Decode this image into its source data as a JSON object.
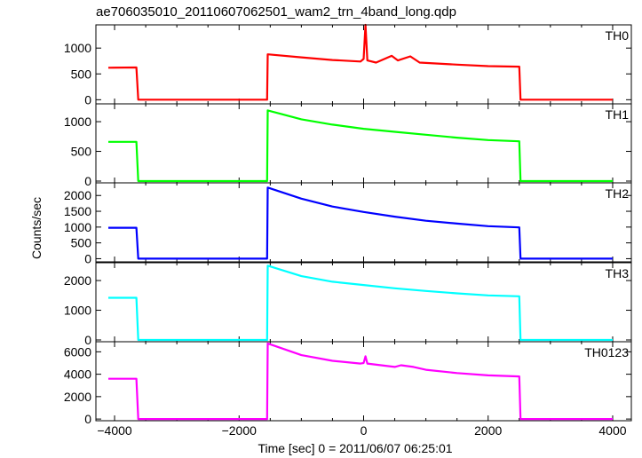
{
  "chart_data": {
    "type": "line",
    "title": "ae706035010_20110607062501_wam2_trn_4band_long.qdp",
    "xlabel": "Time [sec] 0 = 2011/06/07 06:25:01",
    "ylabel": "Counts/sec",
    "xlim": [
      -4300,
      4300
    ],
    "xticks": [
      -4000,
      -2000,
      0,
      2000,
      4000
    ],
    "xtick_labels": [
      "−4000",
      "−2000",
      "0",
      "2000",
      "4000"
    ],
    "panels": [
      {
        "name": "TH0",
        "color": "#ff0000",
        "ylim": [
          -80,
          1450
        ],
        "yticks": [
          0,
          500,
          1000
        ],
        "points": [
          [
            -4100,
            620
          ],
          [
            -3650,
            625
          ],
          [
            -3620,
            0
          ],
          [
            -1550,
            0
          ],
          [
            -1540,
            880
          ],
          [
            -1000,
            820
          ],
          [
            -500,
            770
          ],
          [
            -50,
            740
          ],
          [
            0,
            790
          ],
          [
            30,
            1450
          ],
          [
            60,
            760
          ],
          [
            200,
            720
          ],
          [
            450,
            850
          ],
          [
            550,
            760
          ],
          [
            750,
            840
          ],
          [
            900,
            720
          ],
          [
            1500,
            680
          ],
          [
            2000,
            650
          ],
          [
            2500,
            640
          ],
          [
            2520,
            0
          ],
          [
            4000,
            0
          ]
        ]
      },
      {
        "name": "TH1",
        "color": "#00ff00",
        "ylim": [
          -30,
          1300
        ],
        "yticks": [
          0,
          500,
          1000
        ],
        "points": [
          [
            -4100,
            660
          ],
          [
            -3650,
            660
          ],
          [
            -3620,
            0
          ],
          [
            -1550,
            0
          ],
          [
            -1540,
            1190
          ],
          [
            -1000,
            1040
          ],
          [
            -500,
            950
          ],
          [
            0,
            880
          ],
          [
            500,
            830
          ],
          [
            1000,
            780
          ],
          [
            1500,
            730
          ],
          [
            2000,
            690
          ],
          [
            2500,
            670
          ],
          [
            2520,
            0
          ],
          [
            4000,
            0
          ]
        ]
      },
      {
        "name": "TH2",
        "color": "#0000ff",
        "ylim": [
          -100,
          2400
        ],
        "yticks": [
          0,
          500,
          1000,
          1500,
          2000
        ],
        "points": [
          [
            -4100,
            980
          ],
          [
            -3650,
            980
          ],
          [
            -3620,
            0
          ],
          [
            -1550,
            0
          ],
          [
            -1540,
            2250
          ],
          [
            -1000,
            1900
          ],
          [
            -500,
            1650
          ],
          [
            0,
            1480
          ],
          [
            500,
            1330
          ],
          [
            1000,
            1200
          ],
          [
            1500,
            1110
          ],
          [
            2000,
            1030
          ],
          [
            2500,
            990
          ],
          [
            2520,
            0
          ],
          [
            4000,
            0
          ]
        ]
      },
      {
        "name": "TH3",
        "color": "#00ffff",
        "ylim": [
          -60,
          2600
        ],
        "yticks": [
          0,
          1000,
          2000
        ],
        "points": [
          [
            -4100,
            1420
          ],
          [
            -3650,
            1420
          ],
          [
            -3620,
            0
          ],
          [
            -1550,
            0
          ],
          [
            -1540,
            2500
          ],
          [
            -1000,
            2150
          ],
          [
            -500,
            1960
          ],
          [
            0,
            1850
          ],
          [
            500,
            1740
          ],
          [
            1000,
            1650
          ],
          [
            1500,
            1570
          ],
          [
            2000,
            1500
          ],
          [
            2500,
            1470
          ],
          [
            2520,
            0
          ],
          [
            4000,
            0
          ]
        ]
      },
      {
        "name": "TH0123",
        "color": "#ff00ff",
        "ylim": [
          -150,
          6900
        ],
        "yticks": [
          0,
          2000,
          4000,
          6000
        ],
        "points": [
          [
            -4100,
            3600
          ],
          [
            -3650,
            3600
          ],
          [
            -3620,
            0
          ],
          [
            -1550,
            0
          ],
          [
            -1540,
            6750
          ],
          [
            -1000,
            5700
          ],
          [
            -500,
            5200
          ],
          [
            -50,
            4950
          ],
          [
            0,
            5000
          ],
          [
            30,
            5600
          ],
          [
            60,
            4950
          ],
          [
            500,
            4650
          ],
          [
            600,
            4800
          ],
          [
            800,
            4650
          ],
          [
            1000,
            4400
          ],
          [
            1500,
            4100
          ],
          [
            2000,
            3900
          ],
          [
            2500,
            3800
          ],
          [
            2520,
            0
          ],
          [
            4000,
            0
          ]
        ]
      }
    ]
  }
}
